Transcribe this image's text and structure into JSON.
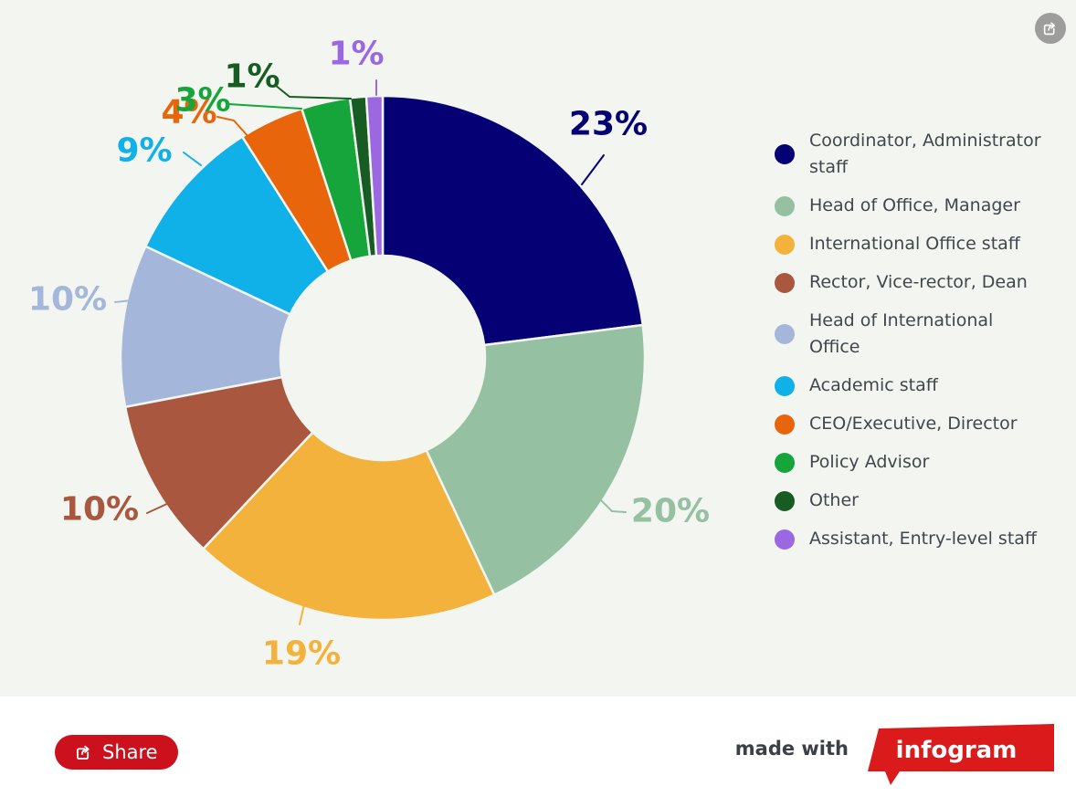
{
  "chart_data": {
    "type": "pie",
    "style": "donut",
    "unit": "%",
    "direction": "clockwise",
    "start_angle_deg": 0,
    "legend_position": "right",
    "categories": [
      "Coordinator, Administrator staff",
      "Head of Office, Manager",
      "International Office staff",
      "Rector, Vice-rector, Dean",
      "Head of International Office",
      "Academic staff",
      "CEO/Executive, Director",
      "Policy Advisor",
      "Other",
      "Assistant, Entry-level staff"
    ],
    "values": [
      23,
      20,
      19,
      10,
      10,
      9,
      4,
      3,
      1,
      1
    ],
    "labels": [
      "23%",
      "20%",
      "19%",
      "10%",
      "10%",
      "9%",
      "4%",
      "3%",
      "1%",
      "1%"
    ],
    "colors": [
      "#050073",
      "#95c0a2",
      "#f2b23c",
      "#a9573f",
      "#a4b7db",
      "#10b0e8",
      "#e9650c",
      "#15a53a",
      "#175c22",
      "#9c68e1"
    ]
  },
  "canvas": {
    "background": "#f3f5f0",
    "footer_background": "#ffffff"
  },
  "legend": {
    "text_color": "#40474c"
  },
  "toolbar": {
    "share_label": "Share"
  },
  "corner": {
    "icon": "share-export-icon",
    "color": "#9d9d9b"
  },
  "footer": {
    "made_with_label": "made with",
    "brand_label": "infogram",
    "brand_color": "#da1a1b",
    "share_button_color": "#cd111c"
  }
}
